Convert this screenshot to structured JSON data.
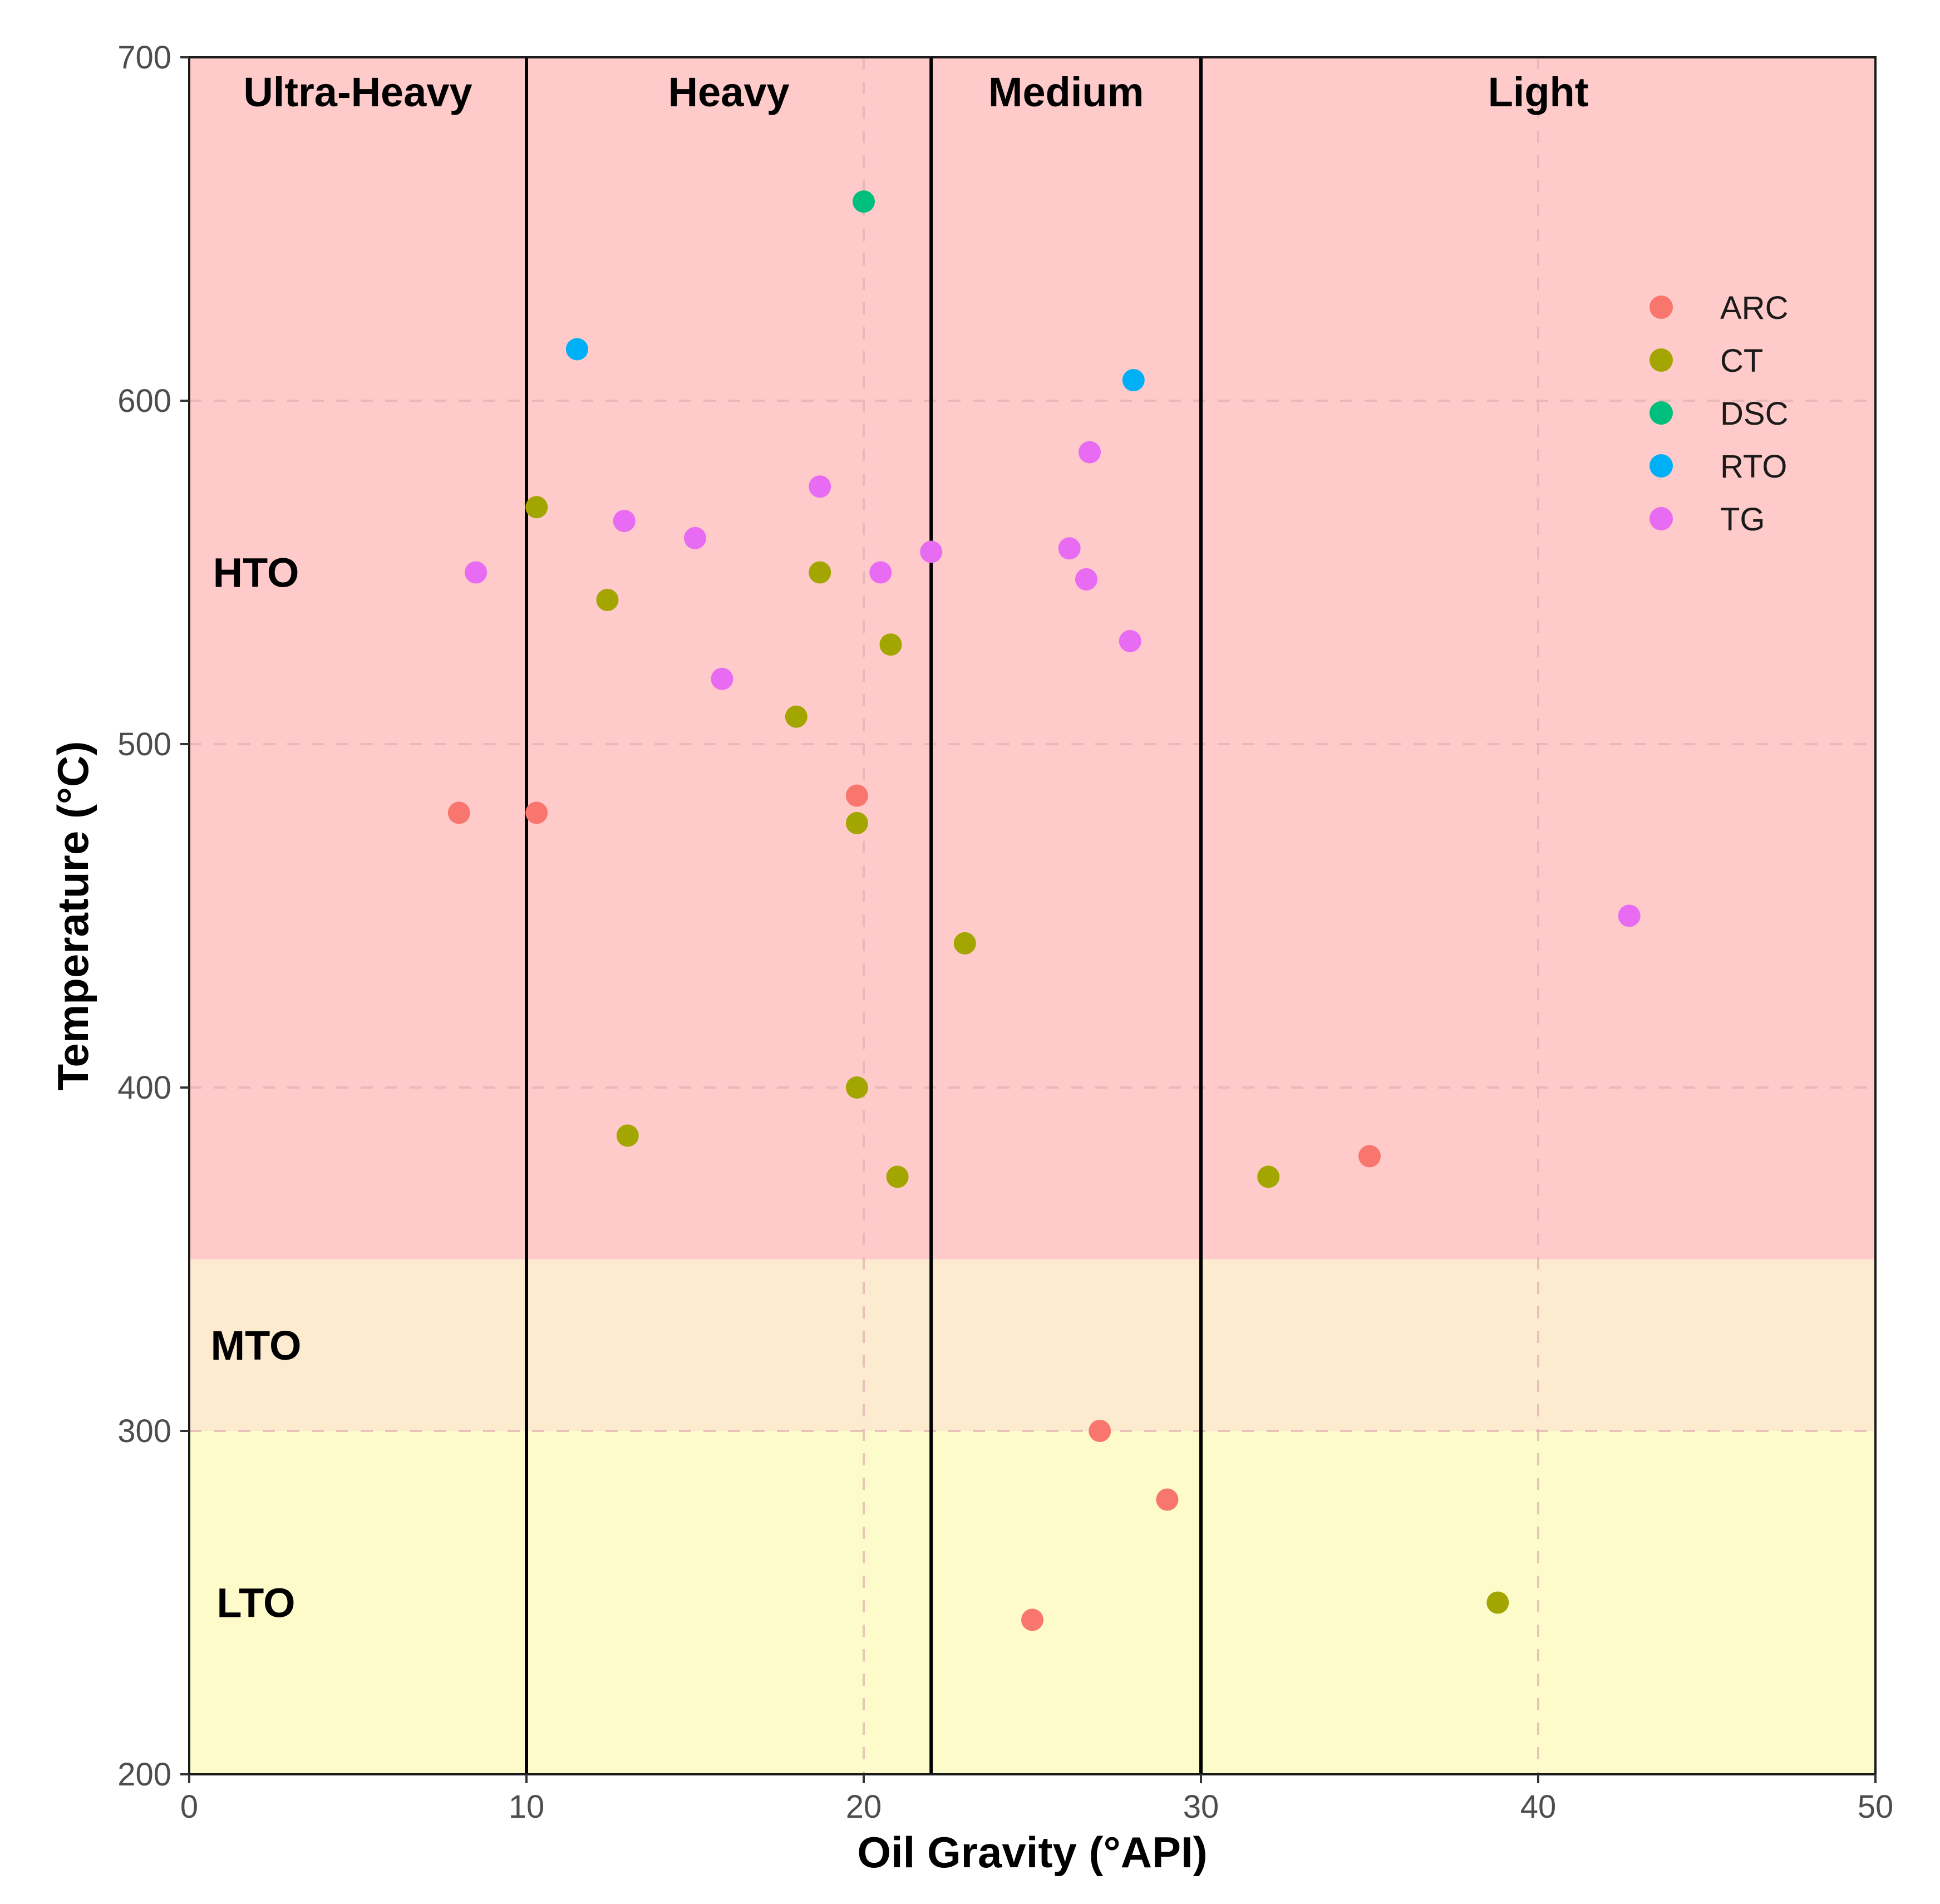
{
  "chart_data": {
    "type": "scatter",
    "title": "",
    "xlabel": "Oil Gravity (°API)",
    "ylabel": "Temperature (°C)",
    "xlim": [
      0,
      50
    ],
    "ylim": [
      200,
      700
    ],
    "xticks": [
      0,
      10,
      20,
      30,
      40,
      50
    ],
    "yticks": [
      200,
      300,
      400,
      500,
      600,
      700
    ],
    "xtick_labels": [
      "0",
      "10",
      "20",
      "30",
      "40",
      "50"
    ],
    "ytick_labels": [
      "200",
      "300",
      "400",
      "500",
      "600",
      "700"
    ],
    "grid": true,
    "legend_position": "top-right",
    "gravity_classes": [
      {
        "label": "Ultra-Heavy",
        "from": 0,
        "to": 10
      },
      {
        "label": "Heavy",
        "from": 10,
        "to": 22
      },
      {
        "label": "Medium",
        "from": 22,
        "to": 30
      },
      {
        "label": "Light",
        "from": 30,
        "to": 50
      }
    ],
    "temperature_bands": [
      {
        "label": "HTO",
        "from": 350,
        "to": 700,
        "color": "#fecaca",
        "label_at": 550
      },
      {
        "label": "MTO",
        "from": 300,
        "to": 350,
        "color": "#fdebd0",
        "label_at": 325
      },
      {
        "label": "LTO",
        "from": 200,
        "to": 300,
        "color": "#fdfbca",
        "label_at": 250
      }
    ],
    "series": [
      {
        "name": "ARC",
        "color": "#F8766D",
        "points": [
          [
            8,
            480
          ],
          [
            10.3,
            480
          ],
          [
            19.8,
            485
          ],
          [
            35,
            380
          ],
          [
            27,
            300
          ],
          [
            29,
            280
          ],
          [
            25,
            245
          ]
        ]
      },
      {
        "name": "CT",
        "color": "#A3A500",
        "points": [
          [
            10.3,
            569
          ],
          [
            12.4,
            542
          ],
          [
            18.7,
            550
          ],
          [
            20.8,
            529
          ],
          [
            18,
            508
          ],
          [
            19.8,
            477
          ],
          [
            23,
            442
          ],
          [
            19.8,
            400
          ],
          [
            13,
            386
          ],
          [
            21,
            374
          ],
          [
            32,
            374
          ],
          [
            38.8,
            250
          ]
        ]
      },
      {
        "name": "DSC",
        "color": "#00BF7D",
        "points": [
          [
            20,
            658
          ]
        ]
      },
      {
        "name": "RTO",
        "color": "#00B0F6",
        "points": [
          [
            11.5,
            615
          ],
          [
            28,
            606
          ]
        ]
      },
      {
        "name": "TG",
        "color": "#E76BF3",
        "points": [
          [
            8.5,
            550
          ],
          [
            12.9,
            565
          ],
          [
            15,
            560
          ],
          [
            18.7,
            575
          ],
          [
            20.5,
            550
          ],
          [
            22,
            556
          ],
          [
            26.1,
            557
          ],
          [
            26.6,
            548
          ],
          [
            26.7,
            585
          ],
          [
            27.9,
            530
          ],
          [
            15.8,
            519
          ],
          [
            42.7,
            450
          ]
        ]
      }
    ]
  }
}
